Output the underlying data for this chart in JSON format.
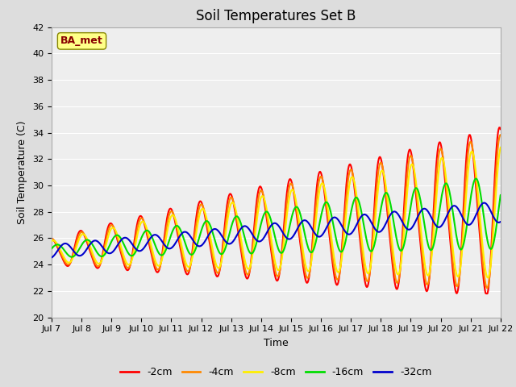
{
  "title": "Soil Temperatures Set B",
  "xlabel": "Time",
  "ylabel": "Soil Temperature (C)",
  "ylim": [
    20,
    42
  ],
  "colors": {
    "-2cm": "#ff0000",
    "-4cm": "#ff8800",
    "-8cm": "#ffee00",
    "-16cm": "#00dd00",
    "-32cm": "#0000cc"
  },
  "annotation_text": "BA_met",
  "annotation_box_facecolor": "#ffff88",
  "annotation_box_edgecolor": "#888800",
  "annotation_text_color": "#880000",
  "fig_facecolor": "#dddddd",
  "plot_facecolor": "#eeeeee",
  "grid_color": "#ffffff",
  "title_fontsize": 12,
  "label_fontsize": 9,
  "tick_fontsize": 8,
  "legend_fontsize": 9,
  "x_tick_labels": [
    "Jul 7",
    "Jul 8",
    "Jul 9",
    "Jul 10",
    "Jul 11",
    "Jul 12",
    "Jul 13",
    "Jul 14",
    "Jul 15",
    "Jul 16",
    "Jul 17",
    "Jul 18",
    "Jul 19",
    "Jul 20",
    "Jul 21",
    "Jul 22"
  ],
  "y_ticks": [
    20,
    22,
    24,
    26,
    28,
    30,
    32,
    34,
    36,
    38,
    40,
    42
  ]
}
